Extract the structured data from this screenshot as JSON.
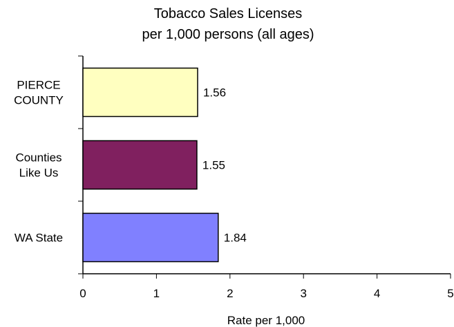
{
  "chart_data": {
    "type": "bar",
    "orientation": "horizontal",
    "title_lines": [
      "Tobacco Sales Licenses",
      "per 1,000 persons (all ages)"
    ],
    "categories": [
      {
        "lines": [
          "PIERCE",
          "COUNTY"
        ]
      },
      {
        "lines": [
          "Counties",
          "Like Us"
        ]
      },
      {
        "lines": [
          "WA State"
        ]
      }
    ],
    "values": [
      1.56,
      1.55,
      1.84
    ],
    "value_labels": [
      "1.56",
      "1.55",
      "1.84"
    ],
    "colors": [
      "#ffffc0",
      "#80205f",
      "#8080ff"
    ],
    "xlabel": "Rate per 1,000",
    "xlim": [
      0,
      5
    ],
    "xticks": [
      "0",
      "1",
      "2",
      "3",
      "4",
      "5"
    ],
    "grid": false,
    "legend": "none"
  }
}
